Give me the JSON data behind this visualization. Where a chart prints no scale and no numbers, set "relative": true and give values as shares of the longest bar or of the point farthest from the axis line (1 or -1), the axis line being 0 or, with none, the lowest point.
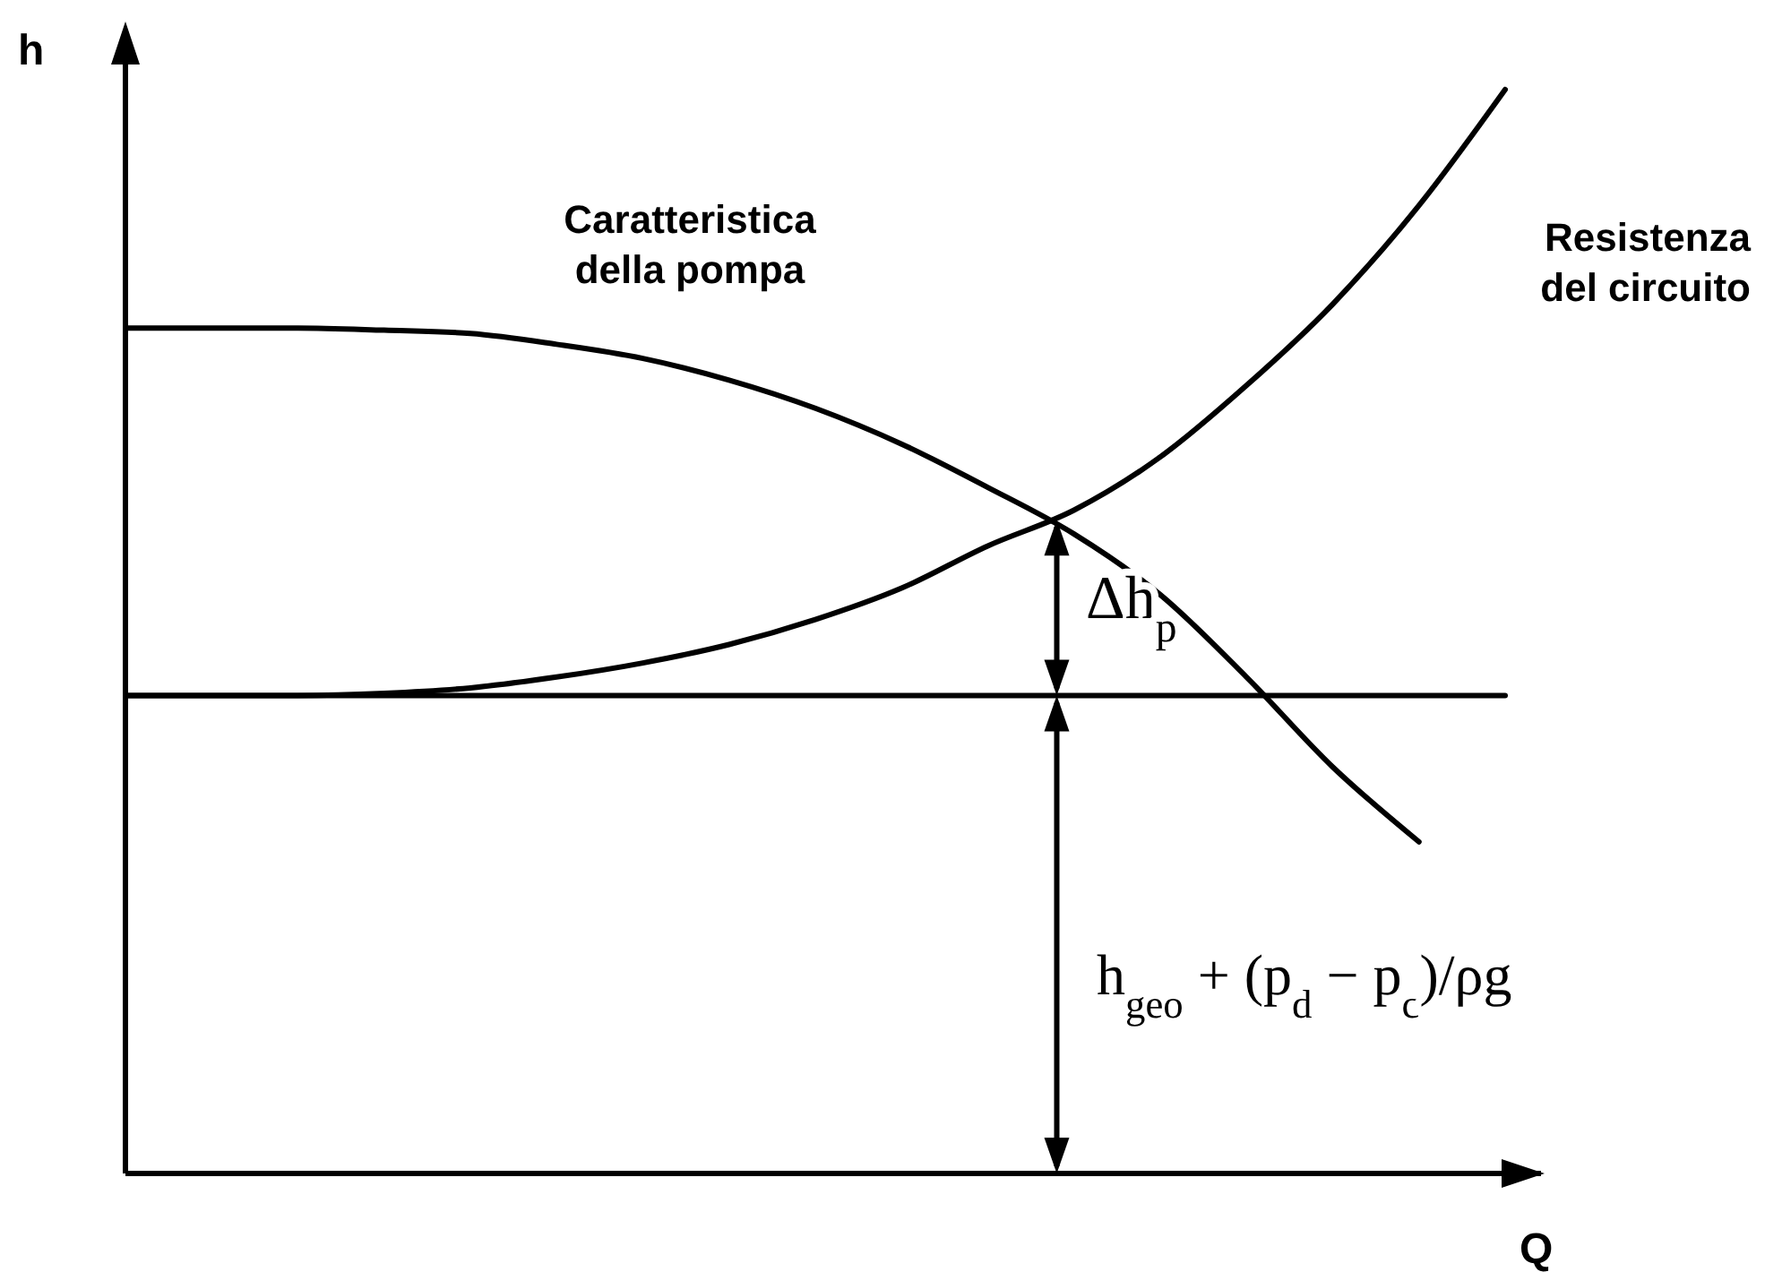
{
  "chart_data": {
    "type": "line",
    "relative": true,
    "xlabel": "Q",
    "ylabel": "h",
    "categories": [
      null,
      null,
      null,
      null,
      null,
      null,
      null,
      null,
      null,
      null,
      null,
      null,
      null,
      null,
      null,
      null,
      null
    ],
    "series": [
      {
        "name": "Caratteristica della pompa",
        "color": "#000000",
        "values": [
          0.78,
          0.78,
          0.78,
          0.778,
          0.775,
          0.765,
          0.752,
          0.732,
          0.706,
          0.673,
          0.633,
          0.59,
          0.534,
          0.458,
          0.375,
          0.306,
          null
        ]
      },
      {
        "name": "Resistenza del circuito",
        "color": "#000000",
        "values": [
          0.441,
          0.441,
          0.441,
          0.443,
          0.448,
          0.458,
          0.471,
          0.488,
          0.511,
          0.54,
          0.579,
          0.612,
          0.661,
          0.727,
          0.802,
          0.893,
          1
        ]
      },
      {
        "color": "#000000",
        "values": [
          0.441,
          0.441,
          0.441,
          0.441,
          0.441,
          0.441,
          0.441,
          0.441,
          0.441,
          0.441,
          0.441,
          0.441,
          0.441,
          0.441,
          0.441,
          0.441,
          0.441
        ]
      }
    ],
    "annotations": [
      "Δh$_{p}$",
      "h$_{geo}$ + (p$_{d}$ − p$_{c}$)/ρg"
    ]
  }
}
